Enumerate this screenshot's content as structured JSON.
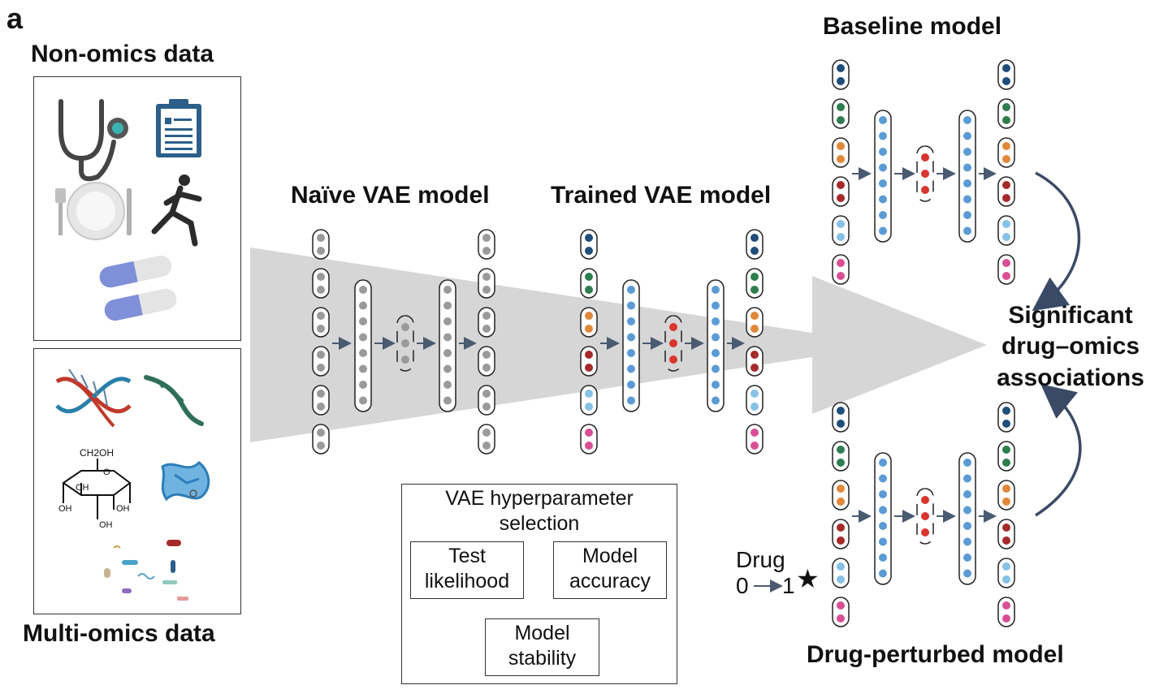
{
  "panel_label": "a",
  "inputs": {
    "non_omics_title": "Non-omics data",
    "multi_omics_title": "Multi-omics data",
    "non_omics_icons": [
      "stethoscope-icon",
      "clipboard-icon",
      "plate-cutlery-icon",
      "runner-icon",
      "pills-icon"
    ],
    "multi_omics_icons": [
      "dna-icon",
      "rna-icon",
      "glucose-molecule-icon",
      "protein-icon",
      "microbes-icon"
    ],
    "glucose_labels": {
      "ch2oh": "CH2OH",
      "oh": "OH"
    }
  },
  "models": {
    "naive": "Naïve VAE model",
    "trained": "Trained VAE model",
    "baseline": "Baseline model",
    "perturbed": "Drug-perturbed model"
  },
  "hyperparameter": {
    "title_line1": "VAE hyperparameter",
    "title_line2": "selection",
    "test_line1": "Test",
    "test_line2": "likelihood",
    "accuracy_line1": "Model",
    "accuracy_line2": "accuracy",
    "stability_line1": "Model",
    "stability_line2": "stability"
  },
  "drug": {
    "label": "Drug",
    "from": "0",
    "to": "1",
    "star": "★"
  },
  "result": {
    "line1": "Significant",
    "line2": "drug–omics",
    "line3": "associations"
  },
  "colors": {
    "navy": "#1f4e79",
    "green": "#2e7d4f",
    "orange": "#e0883a",
    "darkred": "#a52a2a",
    "lightblue": "#86c1e6",
    "pink": "#d94f94",
    "midblue": "#5b9bd5",
    "red": "#d9352f",
    "gray": "#9a9a9a",
    "funnel": "#d6d6d6",
    "arrow": "#4a5a70"
  }
}
